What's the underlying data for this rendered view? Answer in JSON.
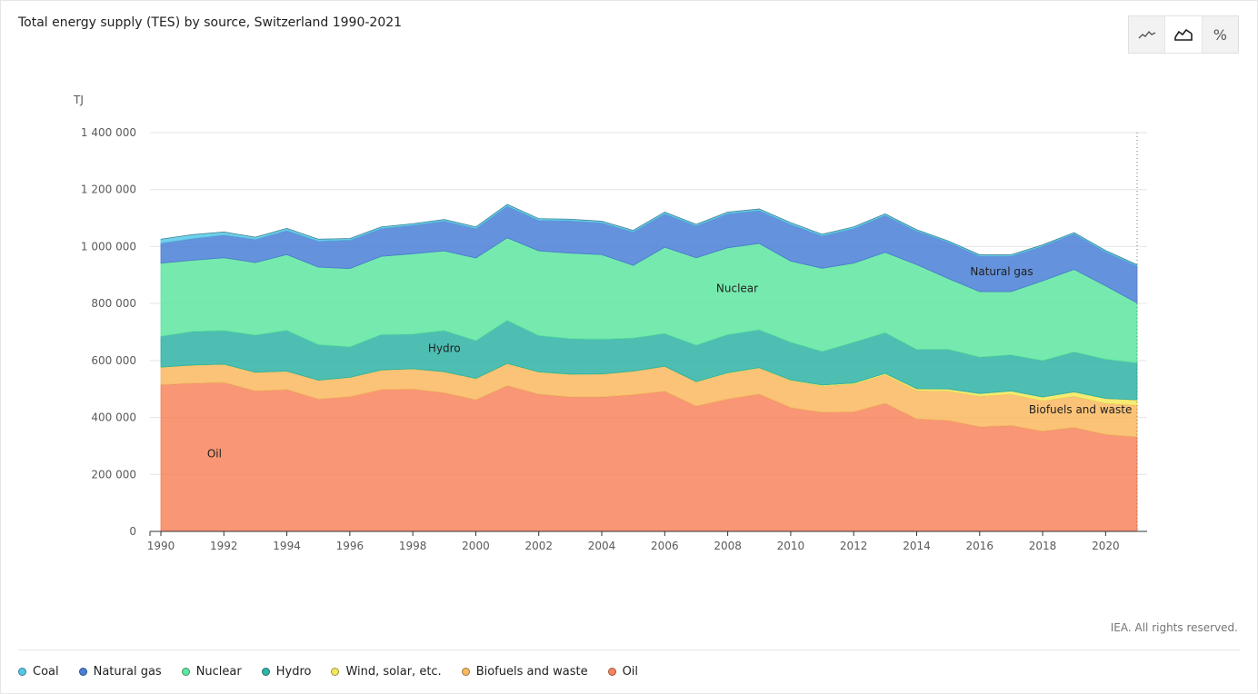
{
  "title": "Total energy supply (TES) by source, Switzerland 1990-2021",
  "copyright": "IEA. All rights reserved.",
  "view_toggle": [
    {
      "name": "line-view-icon",
      "glyph": "⌁",
      "active": false
    },
    {
      "name": "area-view-icon",
      "glyph": "⛰",
      "active": true
    },
    {
      "name": "percent-view-icon",
      "glyph": "%",
      "active": false
    }
  ],
  "legend": [
    {
      "label": "Coal",
      "color": "#56c8e6"
    },
    {
      "label": "Natural gas",
      "color": "#4a7fd6"
    },
    {
      "label": "Nuclear",
      "color": "#5ee6a0"
    },
    {
      "label": "Hydro",
      "color": "#2fb3a6"
    },
    {
      "label": "Wind, solar, etc.",
      "color": "#f4e85c"
    },
    {
      "label": "Biofuels and waste",
      "color": "#f9b960"
    },
    {
      "label": "Oil",
      "color": "#f7845d"
    }
  ],
  "chart_data": {
    "type": "area",
    "stacked": true,
    "ylabel": "TJ",
    "ylim": [
      0,
      1400000
    ],
    "yticks": [
      0,
      200000,
      400000,
      600000,
      800000,
      1000000,
      1200000,
      1400000
    ],
    "ytick_labels": [
      "0",
      "200 000",
      "400 000",
      "600 000",
      "800 000",
      "1 000 000",
      "1 200 000",
      "1 400 000"
    ],
    "xticks": [
      1990,
      1992,
      1994,
      1996,
      1998,
      2000,
      2002,
      2004,
      2006,
      2008,
      2010,
      2012,
      2014,
      2016,
      2018,
      2020
    ],
    "xtick_labels": [
      "1990",
      "1992",
      "1994",
      "1996",
      "1998",
      "2000",
      "2002",
      "2004",
      "2006",
      "2008",
      "2010",
      "2012",
      "2014",
      "2016",
      "2018",
      "2020"
    ],
    "x": [
      1990,
      1991,
      1992,
      1993,
      1994,
      1995,
      1996,
      1997,
      1998,
      1999,
      2000,
      2001,
      2002,
      2003,
      2004,
      2005,
      2006,
      2007,
      2008,
      2009,
      2010,
      2011,
      2012,
      2013,
      2014,
      2015,
      2016,
      2017,
      2018,
      2019,
      2020,
      2021
    ],
    "series": [
      {
        "name": "Oil",
        "color": "#f7845d",
        "values": [
          515000,
          520000,
          523000,
          493000,
          498000,
          465000,
          473000,
          498000,
          500000,
          487000,
          462000,
          512000,
          482000,
          472000,
          472000,
          480000,
          492000,
          440000,
          465000,
          482000,
          435000,
          418000,
          420000,
          450000,
          395000,
          390000,
          367000,
          372000,
          352000,
          365000,
          340000,
          332000
        ]
      },
      {
        "name": "Biofuels and waste",
        "color": "#f9b960",
        "values": [
          61000,
          63000,
          63000,
          65000,
          64000,
          65000,
          67000,
          68000,
          70000,
          73000,
          74000,
          77000,
          77000,
          79000,
          80000,
          82000,
          87000,
          85000,
          90000,
          91000,
          95000,
          93000,
          97000,
          100000,
          100000,
          103000,
          108000,
          110000,
          107000,
          110000,
          110000,
          111000
        ]
      },
      {
        "name": "Wind, solar, etc.",
        "color": "#f4e85c",
        "values": [
          1000,
          1000,
          1000,
          1000,
          1000,
          1000,
          1000,
          1000,
          1000,
          1000,
          1000,
          1000,
          1000,
          1000,
          1000,
          1000,
          1000,
          1000,
          2000,
          2000,
          2000,
          3000,
          4000,
          5000,
          6000,
          7000,
          9000,
          11000,
          13000,
          15000,
          17000,
          19000
        ]
      },
      {
        "name": "Hydro",
        "color": "#2fb3a6",
        "values": [
          108000,
          118000,
          118000,
          130000,
          143000,
          125000,
          107000,
          124000,
          122000,
          144000,
          133000,
          151000,
          128000,
          125000,
          122000,
          116000,
          115000,
          128000,
          134000,
          133000,
          132000,
          118000,
          143000,
          143000,
          138000,
          140000,
          128000,
          127000,
          128000,
          140000,
          138000,
          130000
        ]
      },
      {
        "name": "Nuclear",
        "color": "#5ee6a0",
        "values": [
          257000,
          250000,
          256000,
          255000,
          266000,
          272000,
          275000,
          275000,
          282000,
          280000,
          290000,
          290000,
          297000,
          300000,
          297000,
          255000,
          303000,
          307000,
          305000,
          303000,
          285000,
          292000,
          278000,
          282000,
          298000,
          248000,
          230000,
          222000,
          280000,
          290000,
          257000,
          210000
        ]
      },
      {
        "name": "Natural gas",
        "color": "#4a7fd6",
        "values": [
          70000,
          76000,
          80000,
          82000,
          85000,
          92000,
          100000,
          98000,
          100000,
          105000,
          104000,
          112000,
          108000,
          114000,
          112000,
          118000,
          118000,
          112000,
          120000,
          116000,
          130000,
          114000,
          122000,
          130000,
          118000,
          128000,
          125000,
          125000,
          122000,
          125000,
          120000,
          130000
        ]
      },
      {
        "name": "Coal",
        "color": "#56c8e6",
        "values": [
          14000,
          14000,
          10000,
          7000,
          7000,
          6000,
          5000,
          5000,
          5000,
          5000,
          5000,
          5000,
          5000,
          5000,
          5000,
          5000,
          5000,
          5000,
          5000,
          5000,
          5000,
          5000,
          5000,
          5000,
          4000,
          4000,
          4000,
          4000,
          4000,
          4000,
          4000,
          4000
        ]
      }
    ],
    "annotations": [
      {
        "text": "Oil",
        "series": "Oil",
        "x": 1991.7,
        "y": 260000
      },
      {
        "text": "Hydro",
        "series": "Hydro",
        "x": 1999.0,
        "y": 630000
      },
      {
        "text": "Nuclear",
        "series": "Nuclear",
        "x": 2008.3,
        "y": 840000
      },
      {
        "text": "Natural gas",
        "series": "Natural gas",
        "x": 2016.7,
        "y": 900000
      },
      {
        "text": "Biofuels and waste",
        "series": "Biofuels and waste",
        "x": 2019.2,
        "y": 415000
      }
    ],
    "grid": true,
    "legend_position": "bottom-left"
  }
}
